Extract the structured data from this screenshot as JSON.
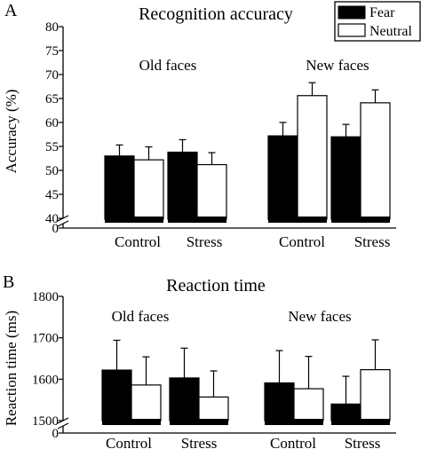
{
  "chart_data": [
    {
      "type": "bar",
      "panel": "A",
      "title": "Recognition accuracy",
      "ylabel": "Accuracy (%)",
      "y_ticks": [
        0,
        40,
        45,
        50,
        55,
        60,
        65,
        70,
        75,
        80
      ],
      "y_break": true,
      "ylim": [
        40,
        80
      ],
      "groups": [
        {
          "label": "Old faces",
          "categories": [
            "Control",
            "Stress"
          ]
        },
        {
          "label": "New faces",
          "categories": [
            "Control",
            "Stress"
          ]
        }
      ],
      "legend": {
        "position": "top-right",
        "entries": [
          "Fear",
          "Neutral"
        ]
      },
      "series": [
        {
          "name": "Fear",
          "color": "#000000",
          "values": [
            53.0,
            53.8,
            57.2,
            57.0
          ],
          "errors": [
            2.3,
            2.6,
            2.8,
            2.6
          ]
        },
        {
          "name": "Neutral",
          "color": "#ffffff",
          "values": [
            52.2,
            51.2,
            65.6,
            64.1
          ],
          "errors": [
            2.7,
            2.5,
            2.7,
            2.7
          ]
        }
      ]
    },
    {
      "type": "bar",
      "panel": "B",
      "title": "Reaction time",
      "ylabel": "Reaction time (ms)",
      "y_ticks": [
        0,
        1500,
        1600,
        1700,
        1800
      ],
      "y_break": true,
      "ylim": [
        1500,
        1800
      ],
      "groups": [
        {
          "label": "Old faces",
          "categories": [
            "Control",
            "Stress"
          ]
        },
        {
          "label": "New faces",
          "categories": [
            "Control",
            "Stress"
          ]
        }
      ],
      "series": [
        {
          "name": "Fear",
          "color": "#000000",
          "values": [
            1622,
            1603,
            1591,
            1540
          ],
          "errors": [
            72,
            72,
            78,
            67
          ]
        },
        {
          "name": "Neutral",
          "color": "#ffffff",
          "values": [
            1586,
            1557,
            1577,
            1623
          ],
          "errors": [
            68,
            63,
            78,
            72
          ]
        }
      ]
    }
  ]
}
